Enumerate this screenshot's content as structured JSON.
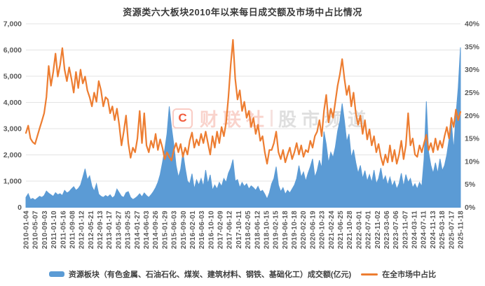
{
  "title": "资源类六大板块2010年以来每日成交额及市场中占比情况",
  "legend": {
    "volume_label": "资源板块（有色金属、石油石化、煤炭、建筑材料、钢铁、基础化工）成交额(亿元)",
    "share_label": "在全市场中占比"
  },
  "watermark": {
    "logo_letter": "C",
    "text_left": "财联社",
    "text_right": "股市频道"
  },
  "colors": {
    "volume": "#5B9BD5",
    "share": "#ED7D31",
    "grid": "#e3e3e3",
    "tick_text": "#595959",
    "title_text": "#3a3a3a"
  },
  "chart_data": {
    "type": "combo",
    "title": "资源类六大板块2010年以来每日成交额及市场中占比情况",
    "grid": "horizontal-only",
    "legend_position": "bottom",
    "left_axis": {
      "label": "成交额(亿元)",
      "min": 0,
      "max": 7000,
      "tick_labels": [
        "0",
        "1,000",
        "2,000",
        "3,000",
        "4,000",
        "5,000",
        "6,000",
        "7,000"
      ]
    },
    "right_axis": {
      "label": "在全市场中占比",
      "min": 0,
      "max": 40,
      "tick_labels": [
        "0%",
        "5%",
        "10%",
        "15%",
        "20%",
        "25%",
        "30%",
        "35%",
        "40%"
      ]
    },
    "x_tick_labels": [
      "2010-01-04",
      "2010-05-07",
      "2010-09-03",
      "2011-01-10",
      "2011-05-16",
      "2011-09-08",
      "2012-01-12",
      "2012-05-21",
      "2012-09-13",
      "2013-01-17",
      "2013-05-27",
      "2013-09-25",
      "2014-01-27",
      "2014-06-03",
      "2014-09-26",
      "2015-01-29",
      "2015-06-03",
      "2015-09-30",
      "2016-02-01",
      "2016-06-03",
      "2016-10-10",
      "2017-02-09",
      "2017-06-12",
      "2017-10-11",
      "2018-02-05",
      "2018-06-12",
      "2018-10-15",
      "2019-02-15",
      "2019-06-18",
      "2019-10-18",
      "2020-02-20",
      "2020-06-19",
      "2020-10-23",
      "2021-02-24",
      "2021-06-25",
      "2021-10-28",
      "2022-03-01",
      "2022-07-01",
      "2022-11-02",
      "2023-03-06",
      "2023-07-06",
      "2023-11-07",
      "2024-03-11",
      "2024-07-11",
      "2024-11-13",
      "2025-03-18",
      "2025-07-17",
      "2025-11-18"
    ],
    "series": [
      {
        "name": "资源板块（有色金属、石油石化、煤炭、建筑材料、钢铁、基础化工）成交额(亿元)",
        "type": "area",
        "axis": "left",
        "color": "#5B9BD5",
        "values": [
          380,
          520,
          300,
          340,
          280,
          350,
          420,
          380,
          450,
          620,
          540,
          480,
          420,
          560,
          480,
          520,
          450,
          650,
          550,
          600,
          700,
          790,
          650,
          720,
          850,
          1150,
          1470,
          1050,
          1200,
          800,
          620,
          900,
          500,
          420,
          380,
          450,
          400,
          480,
          360,
          430,
          700,
          560,
          420,
          380,
          560,
          600,
          380,
          300,
          350,
          420,
          520,
          400,
          550,
          450,
          380,
          480,
          600,
          750,
          950,
          1250,
          1700,
          2200,
          2800,
          3850,
          3050,
          2400,
          1600,
          1150,
          1450,
          2100,
          1500,
          1000,
          900,
          1280,
          700,
          1050,
          850,
          1100,
          800,
          1420,
          900,
          1240,
          650,
          850,
          700,
          950,
          800,
          1100,
          950,
          1300,
          1500,
          1820,
          1000,
          1060,
          750,
          950,
          800,
          900,
          700,
          820,
          750,
          650,
          800,
          600,
          650,
          500,
          320,
          550,
          900,
          1100,
          1550,
          850,
          600,
          750,
          500,
          650,
          550,
          700,
          850,
          1100,
          1590,
          1150,
          1350,
          1000,
          1300,
          1550,
          1850,
          1150,
          1400,
          1800,
          1500,
          2890,
          2400,
          1700,
          2100,
          1900,
          2300,
          2900,
          3300,
          3960,
          3300,
          2500,
          2800,
          1900,
          2200,
          1700,
          1300,
          1600,
          1100,
          1400,
          1000,
          1250,
          950,
          1420,
          900,
          1100,
          1500,
          1000,
          1200,
          850,
          1150,
          800,
          1000,
          700,
          900,
          1300,
          800,
          1250,
          950,
          1100,
          750,
          900,
          700,
          950,
          800,
          1850,
          4040,
          2100,
          1600,
          1300,
          1700,
          1300,
          1850,
          1400,
          1600,
          2000,
          2600,
          3250,
          2200,
          3500,
          4550,
          6100
        ]
      },
      {
        "name": "在全市场中占比",
        "type": "line",
        "axis": "right",
        "color": "#ED7D31",
        "unit": "%",
        "values": [
          16.2,
          17.8,
          15.0,
          14.2,
          13.8,
          15.5,
          17.2,
          18.8,
          20.5,
          24.0,
          30.8,
          26.5,
          29.5,
          33.5,
          28.5,
          31.0,
          34.7,
          30.0,
          27.5,
          30.5,
          28.0,
          25.0,
          29.5,
          26.0,
          30.0,
          27.0,
          28.5,
          25.5,
          24.0,
          22.0,
          25.0,
          23.0,
          27.5,
          25.5,
          22.0,
          24.0,
          23.5,
          20.5,
          22.0,
          19.0,
          21.5,
          18.0,
          13.5,
          16.5,
          20.0,
          14.0,
          10.8,
          13.0,
          12.0,
          15.0,
          21.0,
          14.0,
          20.5,
          13.5,
          12.0,
          14.5,
          13.0,
          16.0,
          12.5,
          14.8,
          13.0,
          10.5,
          12.0,
          11.0,
          10.2,
          12.5,
          14.0,
          12.0,
          13.8,
          11.0,
          13.0,
          11.5,
          14.5,
          16.3,
          13.0,
          14.8,
          13.5,
          16.0,
          14.0,
          16.5,
          14.0,
          11.5,
          15.5,
          13.0,
          16.5,
          14.0,
          17.5,
          15.5,
          18.5,
          24.0,
          31.0,
          36.5,
          28.0,
          23.5,
          25.5,
          21.0,
          23.0,
          19.5,
          21.0,
          17.5,
          19.5,
          16.0,
          18.0,
          14.5,
          15.5,
          12.0,
          9.5,
          12.5,
          12.5,
          14.0,
          16.5,
          12.0,
          10.5,
          12.5,
          9.8,
          11.5,
          13.0,
          10.5,
          12.0,
          14.0,
          11.5,
          13.5,
          11.0,
          12.5,
          12.0,
          14.5,
          13.0,
          15.5,
          16.5,
          19.0,
          15.5,
          21.0,
          24.5,
          18.5,
          21.5,
          19.5,
          23.0,
          26.5,
          29.0,
          32.3,
          28.0,
          24.5,
          26.5,
          22.0,
          25.0,
          20.5,
          18.0,
          20.0,
          16.0,
          19.0,
          14.8,
          17.0,
          13.5,
          15.5,
          12.0,
          13.8,
          11.0,
          9.2,
          11.5,
          9.8,
          13.5,
          10.0,
          12.5,
          9.5,
          11.5,
          14.5,
          10.5,
          13.5,
          20.5,
          13.5,
          15.0,
          11.5,
          11.0,
          13.5,
          12.0,
          14.0,
          15.8,
          12.5,
          14.0,
          12.0,
          15.0,
          12.5,
          14.5,
          13.0,
          15.5,
          17.5,
          15.0,
          19.5,
          17.5,
          21.3,
          19.0,
          20.8
        ]
      }
    ]
  }
}
